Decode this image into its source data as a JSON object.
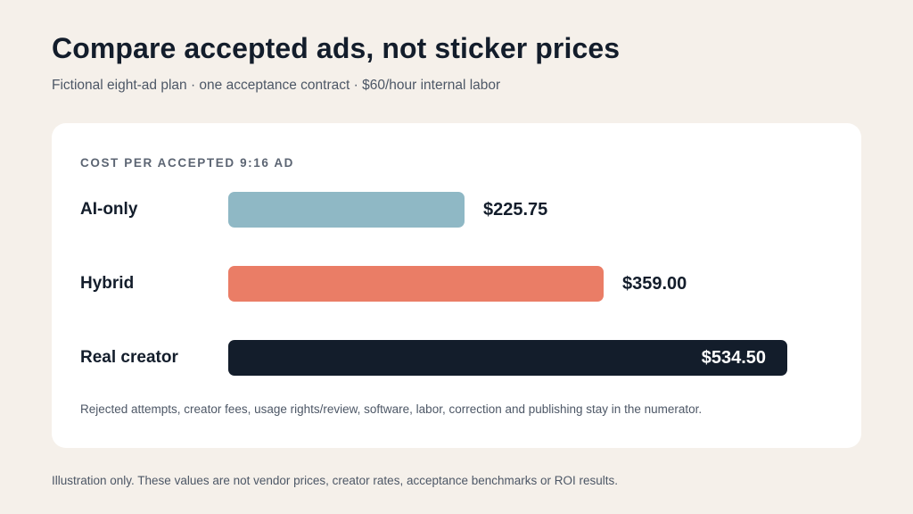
{
  "header": {
    "title": "Compare accepted ads, not sticker prices",
    "subtitle": "Fictional eight-ad plan · one acceptance contract · $60/hour internal labor"
  },
  "card": {
    "label": "COST PER ACCEPTED 9:16 AD",
    "footnote": "Rejected attempts, creator fees, usage rights/review, software, labor, correction and publishing stay in the numerator."
  },
  "disclaimer": "Illustration only. These values are not vendor prices, creator rates, acceptance benchmarks or ROI results.",
  "chart_data": {
    "type": "bar",
    "orientation": "horizontal",
    "title": "COST PER ACCEPTED 9:16 AD",
    "categories": [
      "AI-only",
      "Hybrid",
      "Real creator"
    ],
    "values": [
      225.75,
      359.0,
      534.5
    ],
    "value_labels": [
      "$225.75",
      "$359.00",
      "$534.50"
    ],
    "colors": [
      "#8fb8c5",
      "#ea7d66",
      "#131d2b"
    ],
    "grid": false,
    "legend": "none"
  }
}
